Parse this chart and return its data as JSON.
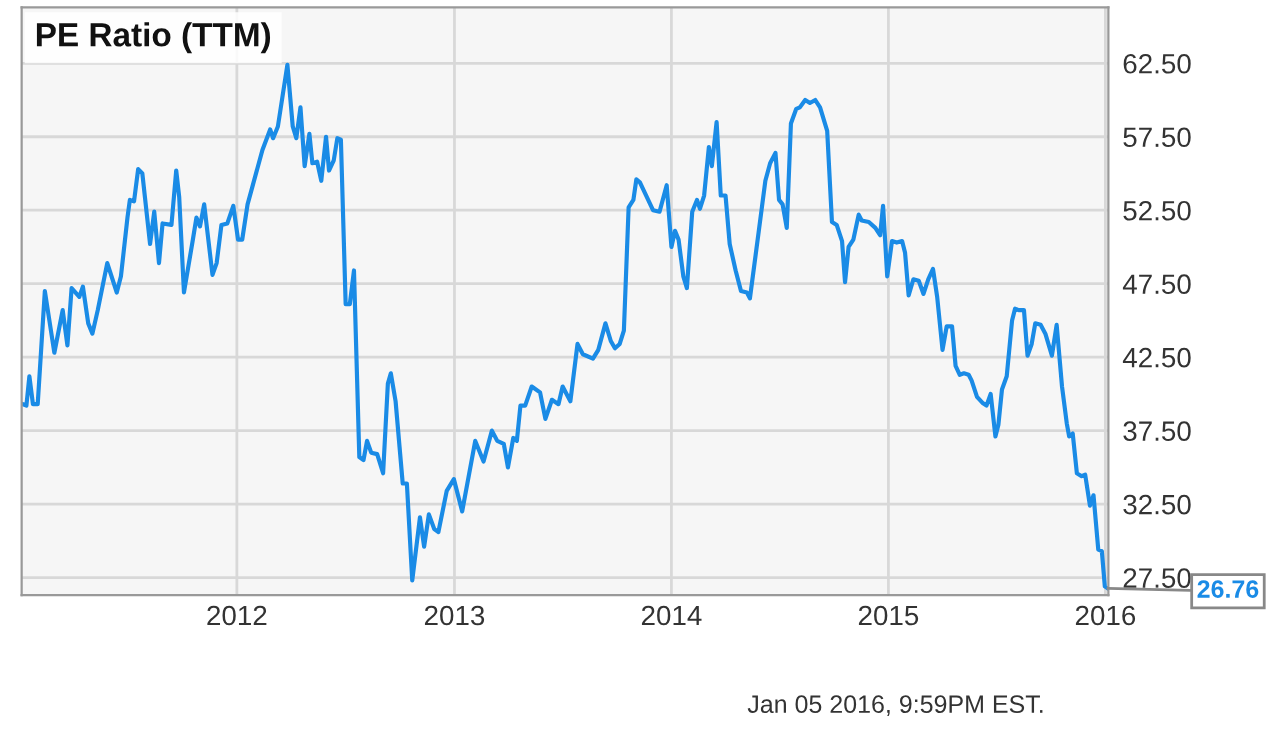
{
  "chart_data": {
    "type": "line",
    "title": "PE Ratio (TTM)",
    "x": [
      "2011-01-06",
      "2011-01-12",
      "2011-01-17",
      "2011-01-23",
      "2011-01-31",
      "2011-02-12",
      "2011-02-28",
      "2011-03-14",
      "2011-03-22",
      "2011-03-29",
      "2011-04-11",
      "2011-04-17",
      "2011-04-26",
      "2011-05-03",
      "2011-05-12",
      "2011-05-28",
      "2011-06-13",
      "2011-06-20",
      "2011-07-01",
      "2011-07-05",
      "2011-07-12",
      "2011-07-19",
      "2011-07-26",
      "2011-08-08",
      "2011-08-15",
      "2011-08-23",
      "2011-08-29",
      "2011-09-13",
      "2011-09-21",
      "2011-09-26",
      "2011-10-04",
      "2011-10-19",
      "2011-10-25",
      "2011-10-31",
      "2011-11-07",
      "2011-11-21",
      "2011-11-28",
      "2011-12-06",
      "2011-12-16",
      "2011-12-26",
      "2012-01-03",
      "2012-01-10",
      "2012-01-19",
      "2012-02-13",
      "2012-02-26",
      "2012-03-02",
      "2012-03-10",
      "2012-03-26",
      "2012-04-04",
      "2012-04-10",
      "2012-04-17",
      "2012-04-24",
      "2012-05-02",
      "2012-05-07",
      "2012-05-15",
      "2012-05-22",
      "2012-05-30",
      "2012-06-04",
      "2012-06-12",
      "2012-06-18",
      "2012-06-24",
      "2012-07-02",
      "2012-07-09",
      "2012-07-16",
      "2012-07-25",
      "2012-08-01",
      "2012-08-07",
      "2012-08-14",
      "2012-08-24",
      "2012-09-03",
      "2012-09-11",
      "2012-09-16",
      "2012-09-24",
      "2012-10-06",
      "2012-10-13",
      "2012-10-22",
      "2012-11-04",
      "2012-11-11",
      "2012-11-19",
      "2012-11-28",
      "2012-12-05",
      "2012-12-19",
      "2012-12-31",
      "2013-01-14",
      "2013-02-05",
      "2013-02-19",
      "2013-03-05",
      "2013-03-14",
      "2013-03-25",
      "2013-04-01",
      "2013-04-10",
      "2013-04-16",
      "2013-04-22",
      "2013-04-30",
      "2013-05-11",
      "2013-05-25",
      "2013-06-03",
      "2013-06-14",
      "2013-06-25",
      "2013-07-02",
      "2013-07-15",
      "2013-07-27",
      "2013-08-05",
      "2013-08-22",
      "2013-08-31",
      "2013-09-12",
      "2013-09-21",
      "2013-09-28",
      "2013-10-06",
      "2013-10-13",
      "2013-10-21",
      "2013-10-29",
      "2013-11-03",
      "2013-11-09",
      "2013-12-01",
      "2013-12-12",
      "2013-12-24",
      "2014-01-01",
      "2014-01-07",
      "2014-01-13",
      "2014-01-21",
      "2014-01-27",
      "2014-02-05",
      "2014-02-13",
      "2014-02-18",
      "2014-02-25",
      "2014-03-05",
      "2014-03-10",
      "2014-03-18",
      "2014-03-25",
      "2014-04-02",
      "2014-04-09",
      "2014-04-19",
      "2014-04-28",
      "2014-05-08",
      "2014-05-13",
      "2014-05-28",
      "2014-06-08",
      "2014-06-16",
      "2014-06-25",
      "2014-07-01",
      "2014-07-07",
      "2014-07-14",
      "2014-07-21",
      "2014-07-30",
      "2014-08-05",
      "2014-08-14",
      "2014-08-22",
      "2014-08-31",
      "2014-09-08",
      "2014-09-20",
      "2014-09-28",
      "2014-10-06",
      "2014-10-15",
      "2014-10-20",
      "2014-10-26",
      "2014-11-03",
      "2014-11-12",
      "2014-11-17",
      "2014-11-29",
      "2014-12-10",
      "2014-12-18",
      "2014-12-23",
      "2014-12-30",
      "2015-01-07",
      "2015-01-15",
      "2015-01-24",
      "2015-01-29",
      "2015-02-04",
      "2015-02-12",
      "2015-02-21",
      "2015-03-01",
      "2015-03-09",
      "2015-03-17",
      "2015-03-24",
      "2015-04-02",
      "2015-04-09",
      "2015-04-18",
      "2015-04-24",
      "2015-05-01",
      "2015-05-08",
      "2015-05-16",
      "2015-05-21",
      "2015-05-30",
      "2015-06-08",
      "2015-06-15",
      "2015-06-22",
      "2015-06-30",
      "2015-07-05",
      "2015-07-11",
      "2015-07-19",
      "2015-07-28",
      "2015-08-02",
      "2015-08-08",
      "2015-08-17",
      "2015-08-23",
      "2015-08-30",
      "2015-09-05",
      "2015-09-14",
      "2015-09-22",
      "2015-10-03",
      "2015-10-11",
      "2015-10-20",
      "2015-10-28",
      "2015-11-01",
      "2015-11-07",
      "2015-11-14",
      "2015-11-22",
      "2015-11-28",
      "2015-12-06",
      "2015-12-12",
      "2015-12-20",
      "2015-12-26",
      "2015-12-31",
      "2016-01-05"
    ],
    "series": [
      {
        "color": "#1a8be6",
        "values": [
          39.3,
          39.2,
          41.2,
          39.3,
          39.3,
          47.0,
          42.8,
          45.7,
          43.3,
          47.2,
          46.6,
          47.3,
          44.8,
          44.1,
          45.7,
          48.9,
          46.9,
          48.0,
          52.0,
          53.2,
          53.1,
          55.3,
          55.0,
          50.2,
          52.4,
          48.9,
          51.6,
          51.5,
          55.2,
          53.4,
          46.9,
          50.5,
          52.0,
          51.4,
          52.9,
          48.1,
          48.9,
          51.5,
          51.6,
          52.8,
          50.5,
          50.5,
          52.9,
          56.6,
          58.0,
          57.4,
          58.2,
          62.4,
          58.2,
          57.4,
          59.5,
          55.5,
          57.7,
          55.7,
          55.8,
          54.5,
          57.5,
          55.2,
          55.9,
          57.4,
          57.3,
          46.1,
          46.1,
          48.4,
          35.7,
          35.5,
          36.8,
          36.0,
          35.9,
          34.6,
          40.7,
          41.4,
          39.5,
          33.9,
          33.9,
          27.3,
          31.6,
          29.6,
          31.8,
          30.8,
          30.6,
          33.4,
          34.2,
          32.0,
          36.8,
          35.4,
          37.5,
          36.8,
          36.6,
          35.0,
          37.0,
          36.8,
          39.2,
          39.2,
          40.5,
          40.1,
          38.3,
          39.6,
          39.3,
          40.5,
          39.5,
          43.4,
          42.7,
          42.4,
          43.0,
          44.8,
          43.6,
          43.1,
          43.4,
          44.3,
          52.7,
          53.2,
          54.6,
          54.4,
          52.5,
          52.4,
          54.2,
          50.0,
          51.1,
          50.5,
          48.0,
          47.2,
          52.4,
          53.2,
          52.6,
          53.5,
          56.8,
          55.5,
          58.5,
          53.5,
          53.5,
          50.2,
          48.4,
          47.0,
          46.9,
          46.5,
          51.1,
          54.5,
          55.7,
          56.4,
          53.2,
          52.9,
          51.3,
          58.4,
          59.4,
          59.5,
          60.0,
          59.8,
          60.0,
          59.5,
          57.9,
          51.7,
          51.5,
          50.4,
          47.6,
          50.0,
          50.5,
          52.2,
          51.8,
          51.7,
          51.3,
          50.8,
          52.8,
          48.0,
          50.4,
          50.3,
          50.4,
          49.6,
          46.7,
          47.8,
          47.7,
          46.8,
          47.8,
          48.5,
          46.6,
          43.0,
          44.6,
          44.6,
          41.9,
          41.3,
          41.4,
          41.3,
          40.9,
          39.8,
          39.4,
          39.2,
          40.0,
          37.1,
          37.9,
          40.3,
          41.2,
          45.0,
          45.8,
          45.7,
          45.7,
          42.6,
          43.4,
          44.8,
          44.7,
          44.1,
          42.6,
          44.7,
          40.5,
          38.0,
          37.1,
          37.3,
          34.6,
          34.4,
          34.5,
          32.4,
          33.1,
          29.4,
          29.3,
          26.9,
          26.76
        ]
      }
    ],
    "xlim": [
      "2011-01-04",
      "2016-01-06"
    ],
    "ylim": [
      26.3,
      66.3
    ],
    "xticks": [
      {
        "value": "2012-01-01",
        "label": "2012"
      },
      {
        "value": "2013-01-01",
        "label": "2013"
      },
      {
        "value": "2014-01-01",
        "label": "2014"
      },
      {
        "value": "2015-01-01",
        "label": "2015"
      },
      {
        "value": "2016-01-01",
        "label": "2016"
      }
    ],
    "yticks": [
      {
        "value": 27.5,
        "label": "27.50"
      },
      {
        "value": 32.5,
        "label": "32.50"
      },
      {
        "value": 37.5,
        "label": "37.50"
      },
      {
        "value": 42.5,
        "label": "42.50"
      },
      {
        "value": 47.5,
        "label": "47.50"
      },
      {
        "value": 52.5,
        "label": "52.50"
      },
      {
        "value": 57.5,
        "label": "57.50"
      },
      {
        "value": 62.5,
        "label": "62.50"
      }
    ],
    "grid": true,
    "legend": false,
    "annotations": [
      {
        "text": "26.76",
        "x": "2016-01-05",
        "y": 26.76
      },
      "Jan 05 2016, 9:59PM EST."
    ]
  }
}
